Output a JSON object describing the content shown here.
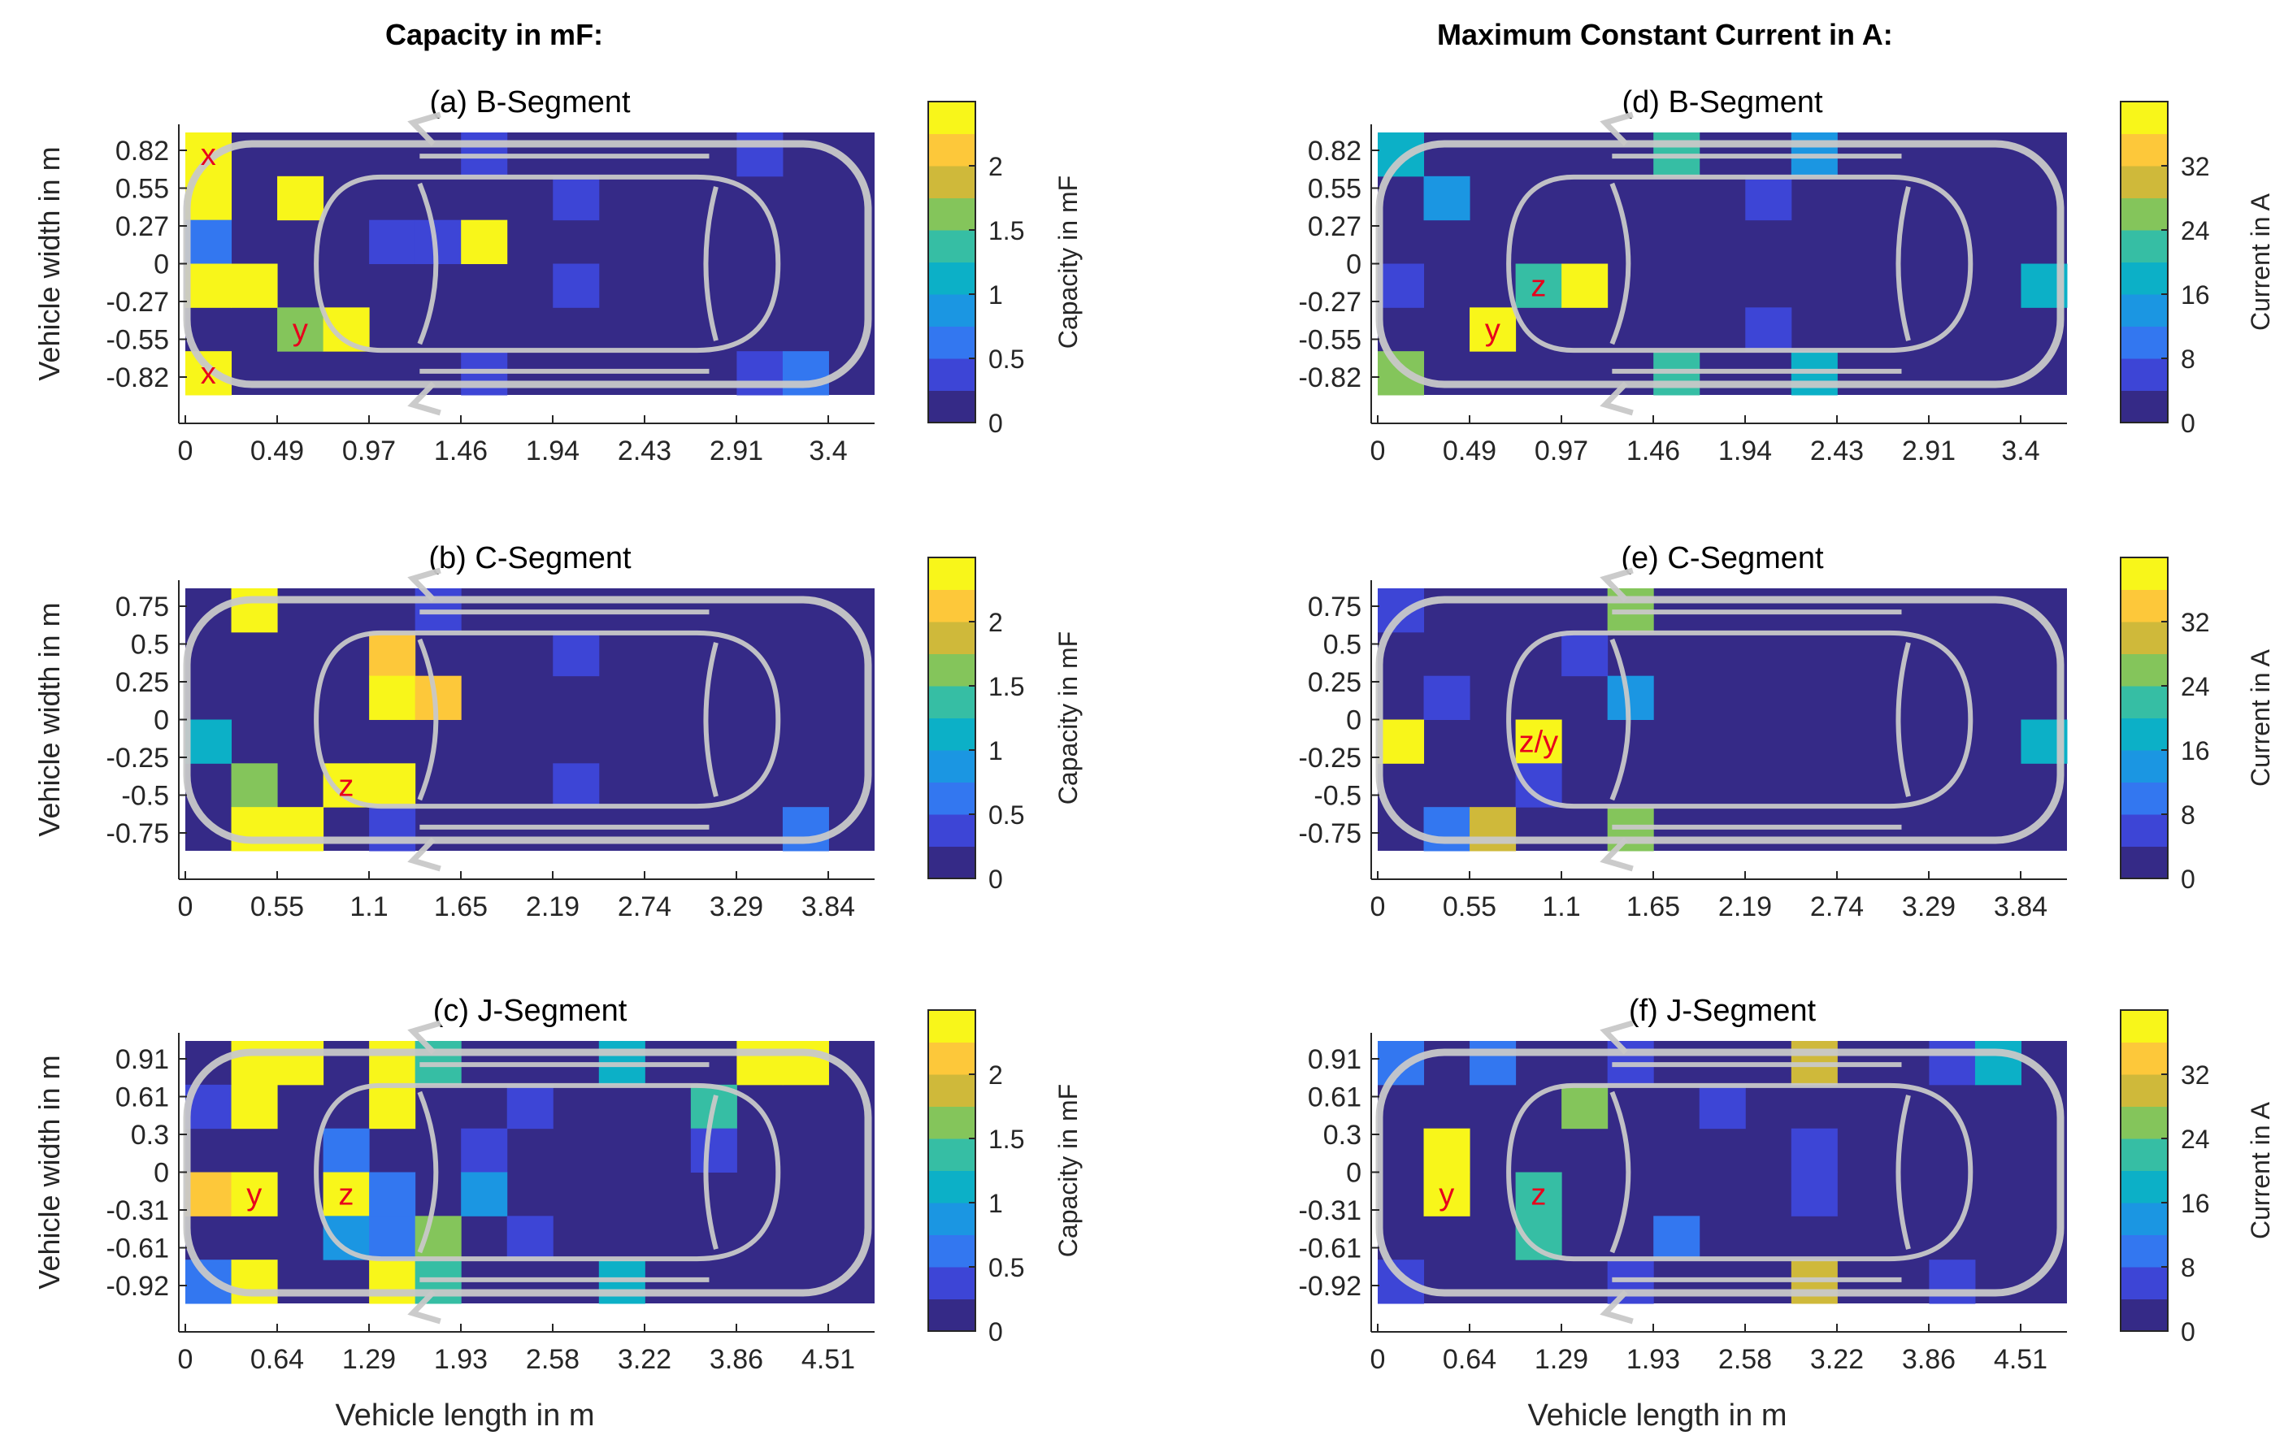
{
  "headers": {
    "left": "Capacity in mF:",
    "right": "Maximum Constant Current in A:"
  },
  "colormap": [
    "#352a87",
    "#3d45d6",
    "#3377f0",
    "#1b96e2",
    "#0cb0c7",
    "#36bea4",
    "#84c55b",
    "#cfb93a",
    "#fdc83a",
    "#f8f61a"
  ],
  "chart_data": [
    {
      "type": "heatmap",
      "id": "a",
      "column": "left",
      "row": 0,
      "title": "(a) B-Segment",
      "xlabel": "",
      "ylabel": "Vehicle width in m",
      "clabel": "Capacity in mF",
      "xticks": [
        "0",
        "0.49",
        "0.97",
        "1.46",
        "1.94",
        "2.43",
        "2.91",
        "3.4"
      ],
      "yticks": [
        "0.82",
        "0.55",
        "0.27",
        "0",
        "-0.27",
        "-0.55",
        "-0.82"
      ],
      "cticks": [
        "0",
        "0.5",
        "1",
        "1.5",
        "2"
      ],
      "grid_cols": 15,
      "grid_rows": 6,
      "cells": [
        [
          0,
          0,
          9
        ],
        [
          0,
          1,
          9
        ],
        [
          0,
          2,
          2
        ],
        [
          0,
          3,
          9
        ],
        [
          0,
          5,
          9
        ],
        [
          1,
          3,
          9
        ],
        [
          2,
          1,
          9
        ],
        [
          2,
          4,
          6
        ],
        [
          3,
          4,
          9
        ],
        [
          4,
          2,
          1
        ],
        [
          5,
          2,
          1
        ],
        [
          6,
          2,
          9
        ],
        [
          6,
          5,
          1
        ],
        [
          6,
          0,
          1
        ],
        [
          8,
          1,
          1
        ],
        [
          8,
          3,
          1
        ],
        [
          12,
          0,
          1
        ],
        [
          12,
          5,
          1
        ],
        [
          13,
          5,
          2
        ]
      ],
      "markers": [
        {
          "label": "x",
          "col": 0,
          "row": 0
        },
        {
          "label": "y",
          "col": 2,
          "row": 4
        },
        {
          "label": "x",
          "col": 0,
          "row": 5
        }
      ]
    },
    {
      "type": "heatmap",
      "id": "d",
      "column": "right",
      "row": 0,
      "title": "(d) B-Segment",
      "xlabel": "",
      "ylabel": "",
      "clabel": "Current in A",
      "xticks": [
        "0",
        "0.49",
        "0.97",
        "1.46",
        "1.94",
        "2.43",
        "2.91",
        "3.4"
      ],
      "yticks": [
        "0.82",
        "0.55",
        "0.27",
        "0",
        "-0.27",
        "-0.55",
        "-0.82"
      ],
      "cticks": [
        "0",
        "8",
        "16",
        "24",
        "32"
      ],
      "grid_cols": 15,
      "grid_rows": 6,
      "cells": [
        [
          0,
          0,
          4
        ],
        [
          1,
          1,
          3
        ],
        [
          0,
          3,
          1
        ],
        [
          0,
          5,
          6
        ],
        [
          2,
          4,
          9
        ],
        [
          3,
          3,
          5
        ],
        [
          4,
          3,
          9
        ],
        [
          6,
          0,
          5
        ],
        [
          6,
          5,
          5
        ],
        [
          8,
          1,
          1
        ],
        [
          8,
          4,
          1
        ],
        [
          9,
          0,
          3
        ],
        [
          9,
          5,
          4
        ],
        [
          14,
          3,
          4
        ]
      ],
      "markers": [
        {
          "label": "z",
          "col": 3,
          "row": 3
        },
        {
          "label": "y",
          "col": 2,
          "row": 4
        }
      ]
    },
    {
      "type": "heatmap",
      "id": "b",
      "column": "left",
      "row": 1,
      "title": "(b) C-Segment",
      "xlabel": "",
      "ylabel": "Vehicle width in m",
      "clabel": "Capacity in mF",
      "xticks": [
        "0",
        "0.55",
        "1.1",
        "1.65",
        "2.19",
        "2.74",
        "3.29",
        "3.84"
      ],
      "yticks": [
        "0.75",
        "0.5",
        "0.25",
        "0",
        "-0.25",
        "-0.5",
        "-0.75"
      ],
      "cticks": [
        "0",
        "0.5",
        "1",
        "1.5",
        "2"
      ],
      "grid_cols": 15,
      "grid_rows": 6,
      "cells": [
        [
          1,
          0,
          9
        ],
        [
          4,
          1,
          8
        ],
        [
          4,
          2,
          9
        ],
        [
          5,
          2,
          8
        ],
        [
          0,
          3,
          4
        ],
        [
          1,
          4,
          6
        ],
        [
          3,
          4,
          9
        ],
        [
          4,
          4,
          9
        ],
        [
          1,
          5,
          9
        ],
        [
          2,
          5,
          9
        ],
        [
          4,
          5,
          1
        ],
        [
          5,
          0,
          1
        ],
        [
          8,
          1,
          1
        ],
        [
          8,
          4,
          1
        ],
        [
          13,
          5,
          2
        ]
      ],
      "markers": [
        {
          "label": "z",
          "col": 3,
          "row": 4
        }
      ]
    },
    {
      "type": "heatmap",
      "id": "e",
      "column": "right",
      "row": 1,
      "title": "(e) C-Segment",
      "xlabel": "",
      "ylabel": "",
      "clabel": "Current in A",
      "xticks": [
        "0",
        "0.55",
        "1.1",
        "1.65",
        "2.19",
        "2.74",
        "3.29",
        "3.84"
      ],
      "yticks": [
        "0.75",
        "0.5",
        "0.25",
        "0",
        "-0.25",
        "-0.5",
        "-0.75"
      ],
      "cticks": [
        "0",
        "8",
        "16",
        "24",
        "32"
      ],
      "grid_cols": 15,
      "grid_rows": 6,
      "cells": [
        [
          0,
          0,
          1
        ],
        [
          4,
          1,
          1
        ],
        [
          5,
          0,
          6
        ],
        [
          1,
          2,
          1
        ],
        [
          5,
          2,
          3
        ],
        [
          0,
          3,
          9
        ],
        [
          3,
          3,
          9
        ],
        [
          3,
          4,
          1
        ],
        [
          1,
          5,
          2
        ],
        [
          2,
          5,
          7
        ],
        [
          5,
          5,
          6
        ],
        [
          14,
          3,
          4
        ]
      ],
      "markers": [
        {
          "label": "z/y",
          "col": 3,
          "row": 3
        }
      ]
    },
    {
      "type": "heatmap",
      "id": "c",
      "column": "left",
      "row": 2,
      "title": "(c) J-Segment",
      "xlabel": "Vehicle length in m",
      "ylabel": "Vehicle width in m",
      "clabel": "Capacity in mF",
      "xticks": [
        "0",
        "0.64",
        "1.29",
        "1.93",
        "2.58",
        "3.22",
        "3.86",
        "4.51"
      ],
      "yticks": [
        "0.91",
        "0.61",
        "0.3",
        "0",
        "-0.31",
        "-0.61",
        "-0.92"
      ],
      "cticks": [
        "0",
        "0.5",
        "1",
        "1.5",
        "2"
      ],
      "grid_cols": 15,
      "grid_rows": 6,
      "cells": [
        [
          1,
          0,
          9
        ],
        [
          2,
          0,
          9
        ],
        [
          4,
          0,
          9
        ],
        [
          5,
          0,
          5
        ],
        [
          9,
          0,
          4
        ],
        [
          12,
          0,
          9
        ],
        [
          13,
          0,
          9
        ],
        [
          0,
          1,
          1
        ],
        [
          1,
          1,
          9
        ],
        [
          4,
          1,
          9
        ],
        [
          7,
          1,
          1
        ],
        [
          11,
          1,
          5
        ],
        [
          3,
          2,
          2
        ],
        [
          6,
          2,
          1
        ],
        [
          11,
          2,
          1
        ],
        [
          0,
          3,
          8
        ],
        [
          1,
          3,
          9
        ],
        [
          3,
          3,
          9
        ],
        [
          4,
          3,
          2
        ],
        [
          6,
          3,
          3
        ],
        [
          3,
          4,
          3
        ],
        [
          4,
          4,
          2
        ],
        [
          5,
          4,
          6
        ],
        [
          7,
          4,
          1
        ],
        [
          0,
          5,
          2
        ],
        [
          1,
          5,
          9
        ],
        [
          4,
          5,
          9
        ],
        [
          5,
          5,
          5
        ],
        [
          9,
          5,
          4
        ]
      ],
      "markers": [
        {
          "label": "y",
          "col": 1,
          "row": 3
        },
        {
          "label": "z",
          "col": 3,
          "row": 3
        }
      ]
    },
    {
      "type": "heatmap",
      "id": "f",
      "column": "right",
      "row": 2,
      "title": "(f) J-Segment",
      "xlabel": "Vehicle length in m",
      "ylabel": "",
      "clabel": "Current in A",
      "xticks": [
        "0",
        "0.64",
        "1.29",
        "1.93",
        "2.58",
        "3.22",
        "3.86",
        "4.51"
      ],
      "yticks": [
        "0.91",
        "0.61",
        "0.3",
        "0",
        "-0.31",
        "-0.61",
        "-0.92"
      ],
      "cticks": [
        "0",
        "8",
        "16",
        "24",
        "32"
      ],
      "grid_cols": 15,
      "grid_rows": 6,
      "cells": [
        [
          0,
          0,
          2
        ],
        [
          2,
          0,
          2
        ],
        [
          5,
          0,
          1
        ],
        [
          9,
          0,
          7
        ],
        [
          12,
          0,
          1
        ],
        [
          13,
          0,
          4
        ],
        [
          4,
          1,
          6
        ],
        [
          7,
          1,
          1
        ],
        [
          1,
          2,
          9
        ],
        [
          9,
          2,
          1
        ],
        [
          1,
          3,
          9
        ],
        [
          3,
          3,
          5
        ],
        [
          9,
          3,
          1
        ],
        [
          3,
          4,
          5
        ],
        [
          6,
          4,
          2
        ],
        [
          0,
          5,
          1
        ],
        [
          5,
          5,
          1
        ],
        [
          9,
          5,
          7
        ],
        [
          12,
          5,
          1
        ]
      ],
      "markers": [
        {
          "label": "y",
          "col": 1,
          "row": 3
        },
        {
          "label": "z",
          "col": 3,
          "row": 3
        }
      ]
    }
  ]
}
